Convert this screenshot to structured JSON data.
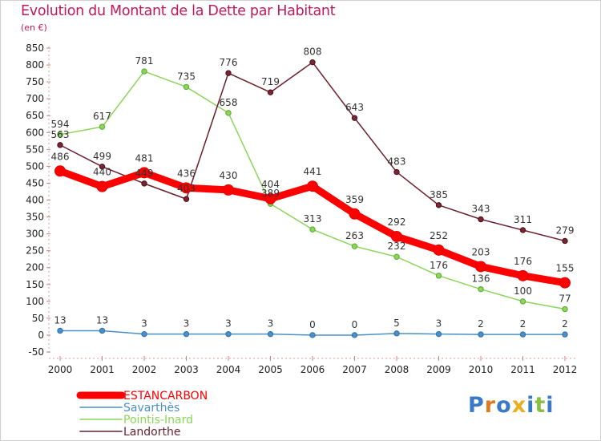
{
  "title": "Evolution du Montant de la Dette par Habitant",
  "unit": "(en €)",
  "logo": "Proxiti",
  "colors": {
    "ESTANCARBON": "#ff0000",
    "Savarthès": "#4a90c8",
    "Pointis-Inard": "#8ad55a",
    "Landorthe": "#6b1f2a",
    "title": "#c2185b"
  },
  "chart_data": {
    "type": "line",
    "title": "Evolution du Montant de la Dette par Habitant",
    "ylabel": "(en €)",
    "xlabel": "",
    "categories": [
      "2000",
      "2001",
      "2002",
      "2003",
      "2004",
      "2005",
      "2006",
      "2007",
      "2008",
      "2009",
      "2010",
      "2011",
      "2012"
    ],
    "ylim": [
      -50,
      850
    ],
    "yticks": [
      -50,
      0,
      50,
      100,
      150,
      200,
      250,
      300,
      350,
      400,
      450,
      500,
      550,
      600,
      650,
      700,
      750,
      800,
      850
    ],
    "grid": false,
    "legend": "bottom-left",
    "series": [
      {
        "name": "ESTANCARBON",
        "values": [
          486,
          440,
          481,
          436,
          430,
          404,
          441,
          359,
          292,
          252,
          203,
          176,
          155
        ],
        "labels": [
          "486",
          "440",
          "481",
          "436",
          "430",
          "404",
          "441",
          "359",
          "292",
          "252",
          "203",
          "176",
          "155"
        ]
      },
      {
        "name": "Savarthès",
        "values": [
          13,
          13,
          3,
          3,
          3,
          3,
          0,
          0,
          5,
          3,
          2,
          2,
          2
        ],
        "labels": [
          "13",
          "13",
          "3",
          "3",
          "3",
          "3",
          "0",
          "0",
          "5",
          "3",
          "2",
          "2",
          "2"
        ]
      },
      {
        "name": "Pointis-Inard",
        "values": [
          594,
          617,
          781,
          735,
          658,
          389,
          313,
          263,
          232,
          176,
          136,
          100,
          77
        ],
        "labels": [
          "594",
          "617",
          "781",
          "735",
          "658",
          "389",
          "313",
          "263",
          "232",
          "176",
          "136",
          "100",
          "77"
        ]
      },
      {
        "name": "Landorthe",
        "values": [
          563,
          499,
          449,
          403,
          776,
          719,
          808,
          643,
          483,
          385,
          343,
          311,
          279
        ],
        "labels": [
          "563",
          "499",
          "449",
          "403",
          "776",
          "719",
          "808",
          "643",
          "483",
          "385",
          "343",
          "311",
          "279"
        ]
      }
    ]
  }
}
